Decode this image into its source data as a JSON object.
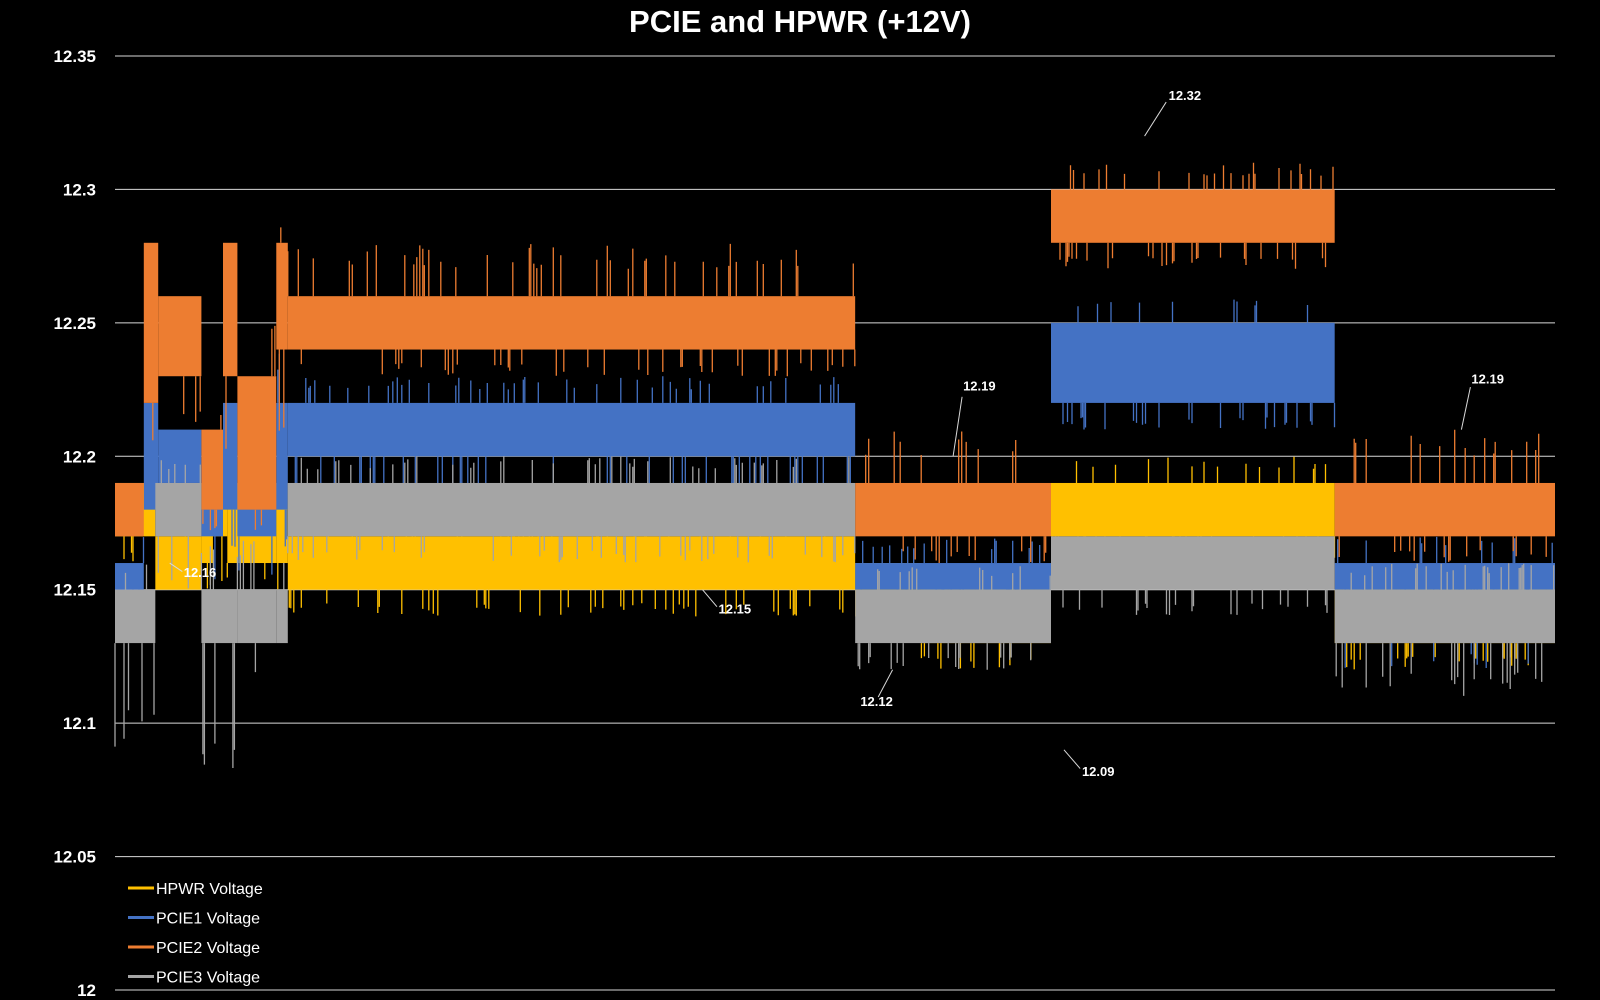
{
  "chart_data": {
    "type": "line",
    "title": "PCIE and HPWR (+12V)",
    "xlabel": "",
    "ylabel": "",
    "ylim": [
      12,
      12.35
    ],
    "yticks": [
      "12",
      "12.05",
      "12.1",
      "12.15",
      "12.2",
      "12.25",
      "12.3",
      "12.35"
    ],
    "grid": true,
    "legend_position": "bottom-left",
    "x_range": [
      0,
      1000
    ],
    "series": [
      {
        "name": "HPWR Voltage",
        "color": "#FFC000",
        "segments": [
          {
            "x0": 0,
            "x1": 28,
            "lo": 12.17,
            "hi": 12.19,
            "spike_lo": 12.16,
            "spike_hi": 12.19
          },
          {
            "x0": 28,
            "x1": 60,
            "lo": 12.15,
            "hi": 12.17,
            "spike_lo": 12.15,
            "spike_hi": 12.19
          },
          {
            "x0": 60,
            "x1": 68,
            "lo": 12.16,
            "hi": 12.18,
            "spike_lo": 12.15,
            "spike_hi": 12.19
          },
          {
            "x0": 68,
            "x1": 78,
            "lo": 12.17,
            "hi": 12.19,
            "spike_lo": 12.15,
            "spike_hi": 12.2
          },
          {
            "x0": 78,
            "x1": 112,
            "lo": 12.16,
            "hi": 12.19,
            "spike_lo": 12.15,
            "spike_hi": 12.19
          },
          {
            "x0": 112,
            "x1": 120,
            "lo": 12.16,
            "hi": 12.19,
            "spike_lo": 12.15,
            "spike_hi": 12.2
          },
          {
            "x0": 120,
            "x1": 514,
            "lo": 12.15,
            "hi": 12.17,
            "spike_lo": 12.14,
            "spike_hi": 12.19
          },
          {
            "x0": 514,
            "x1": 560,
            "lo": 12.14,
            "hi": 12.16,
            "spike_lo": 12.13,
            "spike_hi": 12.16
          },
          {
            "x0": 560,
            "x1": 650,
            "lo": 12.13,
            "hi": 12.15,
            "spike_lo": 12.12,
            "spike_hi": 12.16
          },
          {
            "x0": 650,
            "x1": 847,
            "lo": 12.17,
            "hi": 12.19,
            "spike_lo": 12.16,
            "spike_hi": 12.2
          },
          {
            "x0": 847,
            "x1": 1000,
            "lo": 12.13,
            "hi": 12.15,
            "spike_lo": 12.12,
            "spike_hi": 12.16
          }
        ]
      },
      {
        "name": "PCIE1 Voltage",
        "color": "#4472C4",
        "segments": [
          {
            "x0": 0,
            "x1": 20,
            "lo": 12.15,
            "hi": 12.16,
            "spike_lo": 12.14,
            "spike_hi": 12.17
          },
          {
            "x0": 20,
            "x1": 30,
            "lo": 12.18,
            "hi": 12.22,
            "spike_lo": 12.16,
            "spike_hi": 12.25
          },
          {
            "x0": 30,
            "x1": 60,
            "lo": 12.19,
            "hi": 12.21,
            "spike_lo": 12.17,
            "spike_hi": 12.22
          },
          {
            "x0": 60,
            "x1": 75,
            "lo": 12.17,
            "hi": 12.19,
            "spike_lo": 12.15,
            "spike_hi": 12.2
          },
          {
            "x0": 75,
            "x1": 85,
            "lo": 12.18,
            "hi": 12.22,
            "spike_lo": 12.16,
            "spike_hi": 12.24
          },
          {
            "x0": 85,
            "x1": 112,
            "lo": 12.17,
            "hi": 12.19,
            "spike_lo": 12.15,
            "spike_hi": 12.21
          },
          {
            "x0": 112,
            "x1": 120,
            "lo": 12.18,
            "hi": 12.22,
            "spike_lo": 12.16,
            "spike_hi": 12.24
          },
          {
            "x0": 120,
            "x1": 514,
            "lo": 12.2,
            "hi": 12.22,
            "spike_lo": 12.18,
            "spike_hi": 12.23
          },
          {
            "x0": 514,
            "x1": 650,
            "lo": 12.15,
            "hi": 12.16,
            "spike_lo": 12.14,
            "spike_hi": 12.17
          },
          {
            "x0": 650,
            "x1": 847,
            "lo": 12.22,
            "hi": 12.25,
            "spike_lo": 12.21,
            "spike_hi": 12.26
          },
          {
            "x0": 847,
            "x1": 1000,
            "lo": 12.15,
            "hi": 12.16,
            "spike_lo": 12.12,
            "spike_hi": 12.17
          }
        ]
      },
      {
        "name": "PCIE2 Voltage",
        "color": "#ED7D31",
        "segments": [
          {
            "x0": 0,
            "x1": 20,
            "lo": 12.17,
            "hi": 12.19,
            "spike_lo": 12.17,
            "spike_hi": 12.2
          },
          {
            "x0": 20,
            "x1": 30,
            "lo": 12.22,
            "hi": 12.28,
            "spike_lo": 12.2,
            "spike_hi": 12.29
          },
          {
            "x0": 30,
            "x1": 60,
            "lo": 12.23,
            "hi": 12.26,
            "spike_lo": 12.21,
            "spike_hi": 12.26
          },
          {
            "x0": 60,
            "x1": 75,
            "lo": 12.18,
            "hi": 12.21,
            "spike_lo": 12.17,
            "spike_hi": 12.22
          },
          {
            "x0": 75,
            "x1": 85,
            "lo": 12.23,
            "hi": 12.28,
            "spike_lo": 12.2,
            "spike_hi": 12.29
          },
          {
            "x0": 85,
            "x1": 112,
            "lo": 12.18,
            "hi": 12.23,
            "spike_lo": 12.17,
            "spike_hi": 12.25
          },
          {
            "x0": 112,
            "x1": 120,
            "lo": 12.24,
            "hi": 12.28,
            "spike_lo": 12.2,
            "spike_hi": 12.29
          },
          {
            "x0": 120,
            "x1": 514,
            "lo": 12.24,
            "hi": 12.26,
            "spike_lo": 12.23,
            "spike_hi": 12.28
          },
          {
            "x0": 514,
            "x1": 650,
            "lo": 12.17,
            "hi": 12.19,
            "spike_lo": 12.16,
            "spike_hi": 12.21
          },
          {
            "x0": 650,
            "x1": 847,
            "lo": 12.28,
            "hi": 12.3,
            "spike_lo": 12.27,
            "spike_hi": 12.31
          },
          {
            "x0": 847,
            "x1": 1000,
            "lo": 12.17,
            "hi": 12.19,
            "spike_lo": 12.16,
            "spike_hi": 12.21
          }
        ]
      },
      {
        "name": "PCIE3 Voltage",
        "color": "#A5A5A5",
        "segments": [
          {
            "x0": 0,
            "x1": 28,
            "lo": 12.13,
            "hi": 12.15,
            "spike_lo": 12.08,
            "spike_hi": 12.16
          },
          {
            "x0": 28,
            "x1": 60,
            "lo": 12.17,
            "hi": 12.19,
            "spike_lo": 12.15,
            "spike_hi": 12.2
          },
          {
            "x0": 60,
            "x1": 85,
            "lo": 12.13,
            "hi": 12.15,
            "spike_lo": 12.08,
            "spike_hi": 12.17
          },
          {
            "x0": 85,
            "x1": 112,
            "lo": 12.13,
            "hi": 12.15,
            "spike_lo": 12.11,
            "spike_hi": 12.17
          },
          {
            "x0": 112,
            "x1": 120,
            "lo": 12.13,
            "hi": 12.15,
            "spike_lo": 12.08,
            "spike_hi": 12.17
          },
          {
            "x0": 120,
            "x1": 514,
            "lo": 12.17,
            "hi": 12.19,
            "spike_lo": 12.16,
            "spike_hi": 12.2
          },
          {
            "x0": 514,
            "x1": 650,
            "lo": 12.13,
            "hi": 12.15,
            "spike_lo": 12.12,
            "spike_hi": 12.16
          },
          {
            "x0": 650,
            "x1": 847,
            "lo": 12.15,
            "hi": 12.17,
            "spike_lo": 12.14,
            "spike_hi": 12.17
          },
          {
            "x0": 847,
            "x1": 1000,
            "lo": 12.13,
            "hi": 12.15,
            "spike_lo": 12.11,
            "spike_hi": 12.16
          }
        ]
      }
    ],
    "annotations": [
      {
        "text": "12.16",
        "x": 38,
        "y": 12.16,
        "series": "HPWR Voltage"
      },
      {
        "text": "12.15",
        "x": 408,
        "y": 12.15,
        "series": "HPWR Voltage"
      },
      {
        "text": "12.12",
        "x": 540,
        "y": 12.12,
        "series": "PCIE3 Voltage"
      },
      {
        "text": "12.09",
        "x": 659,
        "y": 12.09,
        "series": "PCIE3 Voltage"
      },
      {
        "text": "12.19",
        "x": 582,
        "y": 12.2,
        "series": "PCIE2 Voltage"
      },
      {
        "text": "12.32",
        "x": 715,
        "y": 12.32,
        "series": "PCIE2 Voltage"
      },
      {
        "text": "12.19",
        "x": 935,
        "y": 12.21,
        "series": "PCIE2 Voltage"
      }
    ]
  }
}
